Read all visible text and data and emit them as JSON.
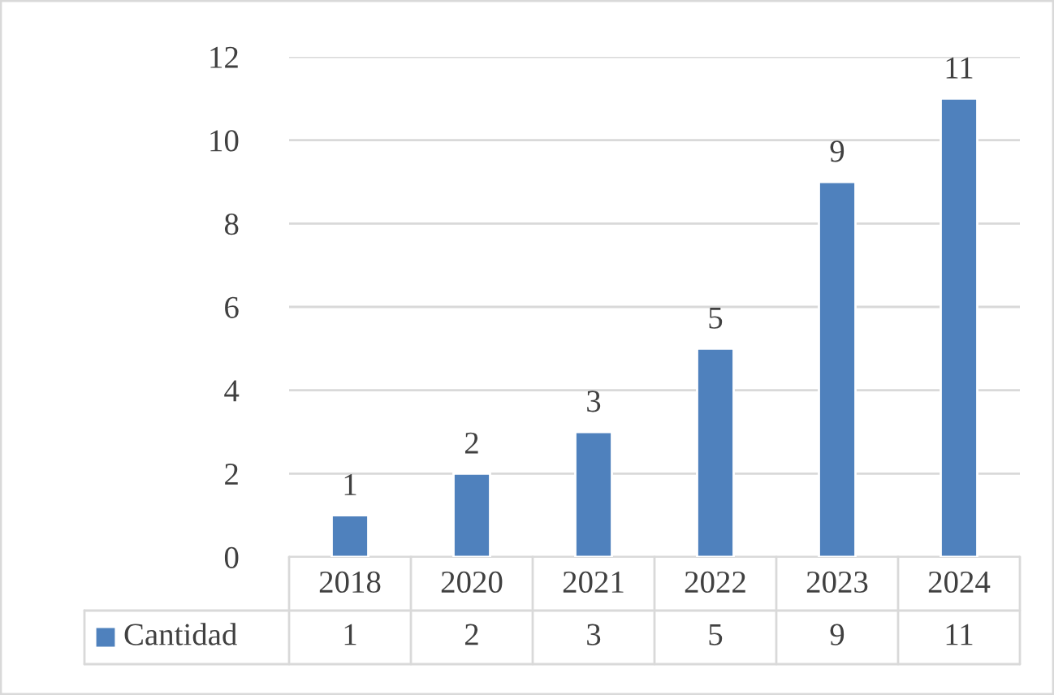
{
  "chart_data": {
    "type": "bar",
    "categories": [
      "2018",
      "2020",
      "2021",
      "2022",
      "2023",
      "2024"
    ],
    "series": [
      {
        "name": "Cantidad",
        "color": "#4f81bd",
        "values": [
          1,
          2,
          3,
          5,
          9,
          11
        ],
        "value_labels": [
          "1",
          "2",
          "3",
          "5",
          "9",
          "11"
        ]
      }
    ],
    "ylim": [
      0,
      12
    ],
    "yticks": [
      0,
      2,
      4,
      6,
      8,
      10,
      12
    ],
    "grid": "y",
    "legend": "bottom",
    "annotations": [
      "1",
      "2",
      "3",
      "5",
      "9",
      "11"
    ]
  }
}
